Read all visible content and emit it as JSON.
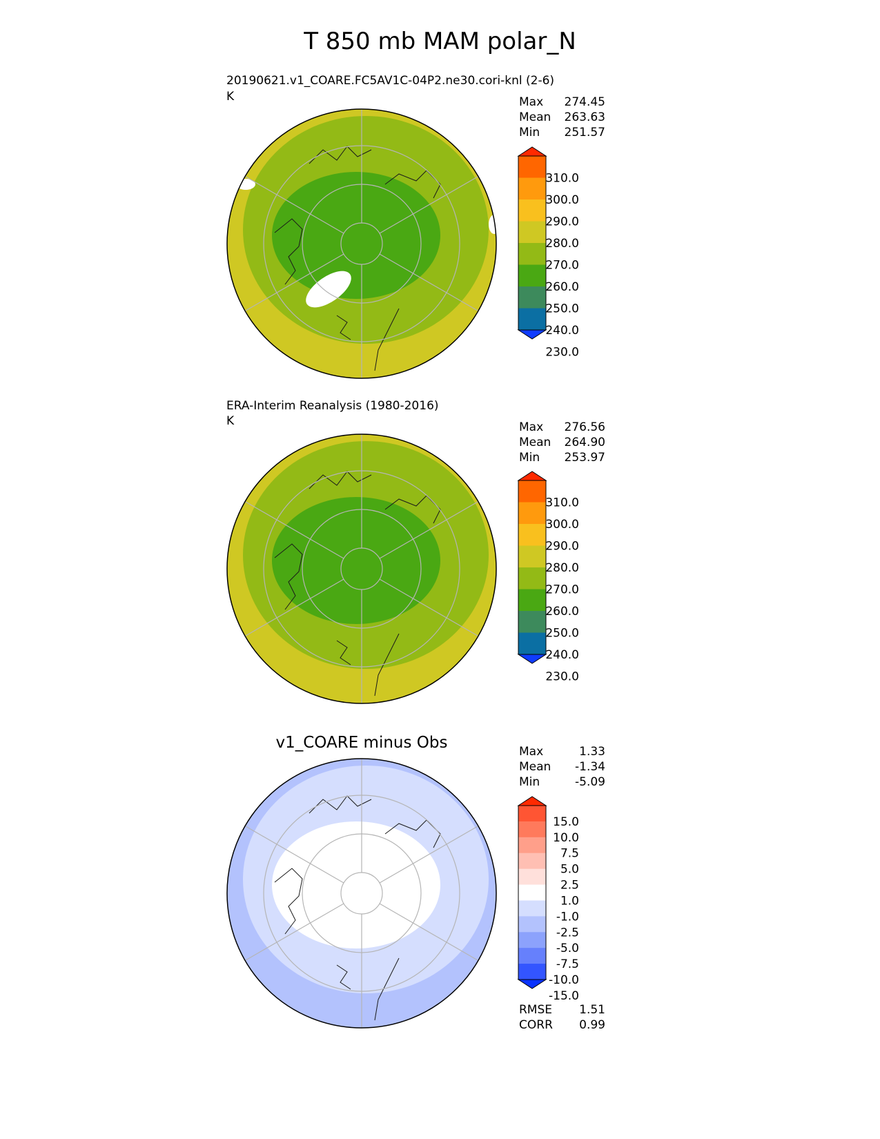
{
  "title": "T 850 mb MAM polar_N",
  "panels": [
    {
      "title": "20190621.v1_COARE.FC5AV1C-04P2.ne30.cori-knl (2-6)",
      "units": "K",
      "stats": [
        {
          "label": "Max",
          "value": "274.45"
        },
        {
          "label": "Mean",
          "value": "263.63"
        },
        {
          "label": "Min",
          "value": "251.57"
        }
      ],
      "colorbar": {
        "ticks": [
          "310.0",
          "300.0",
          "290.0",
          "280.0",
          "270.0",
          "260.0",
          "250.0",
          "240.0",
          "230.0"
        ],
        "colors": [
          "#ff2a00",
          "#ff6600",
          "#ff9a0d",
          "#f9c01e",
          "#cfc823",
          "#93ba16",
          "#4aa813",
          "#3d8a5c",
          "#0b6fa3",
          "#0f3cff"
        ]
      },
      "map": {
        "pole": "#4aa813",
        "mid": "#93ba16",
        "outer": "#cfc823",
        "land_mask": "#ffffff"
      }
    },
    {
      "title": "ERA-Interim Reanalysis (1980-2016)",
      "units": "K",
      "stats": [
        {
          "label": "Max",
          "value": "276.56"
        },
        {
          "label": "Mean",
          "value": "264.90"
        },
        {
          "label": "Min",
          "value": "253.97"
        }
      ],
      "colorbar": {
        "ticks": [
          "310.0",
          "300.0",
          "290.0",
          "280.0",
          "270.0",
          "260.0",
          "250.0",
          "240.0",
          "230.0"
        ],
        "colors": [
          "#ff2a00",
          "#ff6600",
          "#ff9a0d",
          "#f9c01e",
          "#cfc823",
          "#93ba16",
          "#4aa813",
          "#3d8a5c",
          "#0b6fa3",
          "#0f3cff"
        ]
      },
      "map": {
        "pole": "#4aa813",
        "mid": "#93ba16",
        "outer": "#cfc823"
      }
    },
    {
      "title": "v1_COARE minus Obs",
      "stats": [
        {
          "label": "Max",
          "value": "1.33"
        },
        {
          "label": "Mean",
          "value": "-1.34"
        },
        {
          "label": "Min",
          "value": "-5.09"
        }
      ],
      "colorbar": {
        "ticks": [
          "15.0",
          "10.0",
          "7.5",
          "5.0",
          "2.5",
          "1.0",
          "-1.0",
          "-2.5",
          "-5.0",
          "-7.5",
          "-10.0",
          "-15.0"
        ],
        "colors": [
          "#ff2a00",
          "#ff5533",
          "#ff7a5c",
          "#ff9f8a",
          "#ffbfb3",
          "#ffe0db",
          "#ffffff",
          "#d5defe",
          "#b3c2fd",
          "#8ca2fc",
          "#6680fc",
          "#3355ff",
          "#0a33ff"
        ]
      },
      "map": {
        "pole": "#ffffff",
        "mid": "#d5defe",
        "outer": "#b3c2fd"
      },
      "metrics": [
        {
          "label": "RMSE",
          "value": "1.51"
        },
        {
          "label": "CORR",
          "value": "0.99"
        }
      ]
    }
  ]
}
